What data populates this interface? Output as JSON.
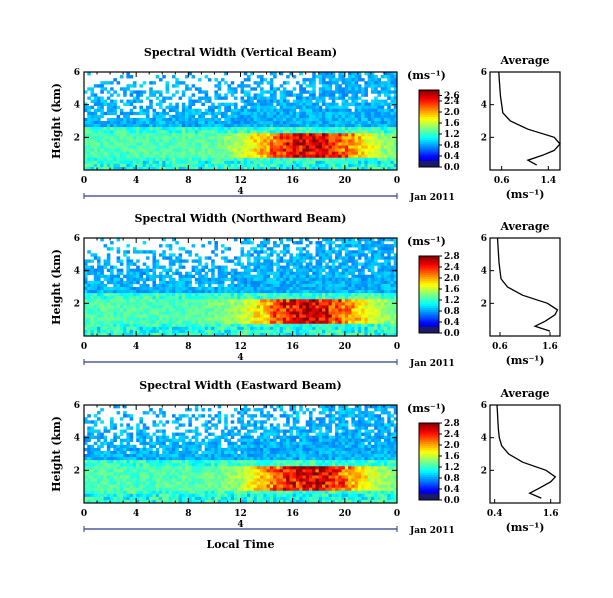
{
  "chart_data": [
    {
      "type": "heatmap",
      "title": "Spectral Width (Vertical Beam)",
      "xlabel": "",
      "ylabel": "Height (km)",
      "date_label": "Jan 2011",
      "date_marker": "4",
      "x_ticks": [
        "0",
        "4",
        "8",
        "12",
        "16",
        "20",
        "0"
      ],
      "y_ticks": [
        "6",
        "4",
        "2"
      ],
      "xlim": [
        0,
        24
      ],
      "ylim": [
        0,
        6
      ],
      "colorbar": {
        "unit": "(ms⁻¹)",
        "ticks": [
          "2.6",
          "2.4",
          "2.0",
          "1.6",
          "1.2",
          "0.8",
          "0.4",
          "0.0"
        ],
        "range": [
          0,
          2.8
        ]
      },
      "average": {
        "title": "Average",
        "xlabel": "(ms⁻¹)",
        "x_ticks": [
          "0.6",
          "1.4"
        ],
        "xlim": [
          0.4,
          1.6
        ],
        "y_ticks": [
          "6",
          "4",
          "2"
        ],
        "profile": [
          [
            1.2,
            0.3
          ],
          [
            1.05,
            0.6
          ],
          [
            1.3,
            0.9
          ],
          [
            1.5,
            1.2
          ],
          [
            1.6,
            1.6
          ],
          [
            1.5,
            2.0
          ],
          [
            1.05,
            2.5
          ],
          [
            0.75,
            3.0
          ],
          [
            0.62,
            3.5
          ],
          [
            0.6,
            4.0
          ],
          [
            0.58,
            4.5
          ],
          [
            0.57,
            5.0
          ],
          [
            0.56,
            5.5
          ],
          [
            0.55,
            6.0
          ]
        ]
      }
    },
    {
      "type": "heatmap",
      "title": "Spectral Width (Northward Beam)",
      "xlabel": "",
      "ylabel": "Height (km)",
      "date_label": "Jan 2011",
      "date_marker": "4",
      "x_ticks": [
        "0",
        "4",
        "8",
        "12",
        "16",
        "20",
        "0"
      ],
      "y_ticks": [
        "6",
        "4",
        "2"
      ],
      "xlim": [
        0,
        24
      ],
      "ylim": [
        0,
        6
      ],
      "colorbar": {
        "unit": "(ms⁻¹)",
        "ticks": [
          "2.8",
          "2.4",
          "2.0",
          "1.6",
          "1.2",
          "0.8",
          "0.4",
          "0.0"
        ],
        "range": [
          0,
          2.8
        ]
      },
      "average": {
        "title": "Average",
        "xlabel": "(ms⁻¹)",
        "x_ticks": [
          "0.6",
          "1.6"
        ],
        "xlim": [
          0.4,
          1.8
        ],
        "y_ticks": [
          "6",
          "4",
          "2"
        ],
        "profile": [
          [
            1.6,
            0.3
          ],
          [
            1.3,
            0.6
          ],
          [
            1.5,
            0.9
          ],
          [
            1.7,
            1.3
          ],
          [
            1.75,
            1.6
          ],
          [
            1.55,
            2.0
          ],
          [
            1.05,
            2.5
          ],
          [
            0.75,
            3.0
          ],
          [
            0.62,
            3.5
          ],
          [
            0.6,
            4.0
          ],
          [
            0.58,
            4.5
          ],
          [
            0.57,
            5.0
          ],
          [
            0.56,
            5.5
          ],
          [
            0.55,
            6.0
          ]
        ]
      }
    },
    {
      "type": "heatmap",
      "title": "Spectral Width (Eastward Beam)",
      "xlabel": "Local Time",
      "ylabel": "Height (km)",
      "date_label": "Jan 2011",
      "date_marker": "4",
      "x_ticks": [
        "0",
        "4",
        "8",
        "12",
        "16",
        "20",
        "0"
      ],
      "y_ticks": [
        "6",
        "4",
        "2"
      ],
      "xlim": [
        0,
        24
      ],
      "ylim": [
        0,
        6
      ],
      "colorbar": {
        "unit": "(ms⁻¹)",
        "ticks": [
          "2.8",
          "2.4",
          "2.0",
          "1.6",
          "1.2",
          "0.8",
          "0.4",
          "0.0"
        ],
        "range": [
          0,
          2.8
        ]
      },
      "average": {
        "title": "Average",
        "xlabel": "(ms⁻¹)",
        "x_ticks": [
          "0.4",
          "1.6"
        ],
        "xlim": [
          0.3,
          1.8
        ],
        "y_ticks": [
          "6",
          "4",
          "2"
        ],
        "profile": [
          [
            1.4,
            0.3
          ],
          [
            1.15,
            0.6
          ],
          [
            1.35,
            0.9
          ],
          [
            1.6,
            1.3
          ],
          [
            1.7,
            1.6
          ],
          [
            1.5,
            2.0
          ],
          [
            1.0,
            2.5
          ],
          [
            0.7,
            3.0
          ],
          [
            0.55,
            3.5
          ],
          [
            0.5,
            4.0
          ],
          [
            0.48,
            4.5
          ],
          [
            0.47,
            5.0
          ],
          [
            0.46,
            5.5
          ],
          [
            0.45,
            6.0
          ]
        ]
      }
    }
  ]
}
